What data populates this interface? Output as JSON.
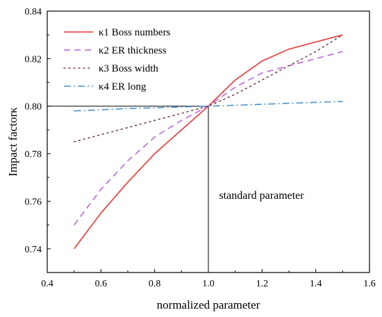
{
  "chart_data": {
    "type": "line",
    "xlabel": "normalized parameter",
    "ylabel": "Impact factorκ",
    "xlim": [
      0.4,
      1.6
    ],
    "ylim": [
      0.73,
      0.84
    ],
    "xticks": [
      "0.4",
      "0.6",
      "0.8",
      "1.0",
      "1.2",
      "1.4",
      "1.6"
    ],
    "yticks": [
      "0.74",
      "0.76",
      "0.78",
      "0.80",
      "0.82",
      "0.84"
    ],
    "grid": false,
    "legend_position": "top-left",
    "reference_lines": {
      "x": 1.0,
      "y": 0.8
    },
    "annotation": {
      "text": "standard parameter",
      "x": 1.04,
      "y": 0.761
    },
    "series": [
      {
        "name": "κ1 Boss numbers",
        "color": "#ee3333",
        "dash": "solid",
        "x": [
          0.5,
          0.6,
          0.7,
          0.8,
          0.9,
          1.0,
          1.1,
          1.2,
          1.3,
          1.4,
          1.5
        ],
        "y": [
          0.74,
          0.755,
          0.768,
          0.78,
          0.79,
          0.8,
          0.811,
          0.819,
          0.824,
          0.827,
          0.83
        ]
      },
      {
        "name": "κ2 ER thickness",
        "color": "#bb66dd",
        "dash": "dashed",
        "x": [
          0.5,
          0.6,
          0.7,
          0.8,
          0.9,
          1.0,
          1.1,
          1.2,
          1.3,
          1.4,
          1.5
        ],
        "y": [
          0.75,
          0.765,
          0.777,
          0.787,
          0.794,
          0.8,
          0.808,
          0.814,
          0.817,
          0.82,
          0.823
        ]
      },
      {
        "name": "κ3 Boss width",
        "color": "#7a4a4a",
        "dash": "dotted",
        "x": [
          0.5,
          0.6,
          0.7,
          0.8,
          0.9,
          1.0,
          1.1,
          1.2,
          1.3,
          1.4,
          1.5
        ],
        "y": [
          0.785,
          0.788,
          0.791,
          0.794,
          0.797,
          0.8,
          0.805,
          0.811,
          0.817,
          0.823,
          0.83
        ]
      },
      {
        "name": "κ4 ER long",
        "color": "#4a90c8",
        "dash": "dashdot",
        "x": [
          0.5,
          0.6,
          0.7,
          0.8,
          0.9,
          1.0,
          1.1,
          1.2,
          1.3,
          1.4,
          1.5
        ],
        "y": [
          0.798,
          0.7985,
          0.799,
          0.7993,
          0.7997,
          0.8,
          0.8004,
          0.8008,
          0.8012,
          0.8016,
          0.802
        ]
      }
    ]
  }
}
